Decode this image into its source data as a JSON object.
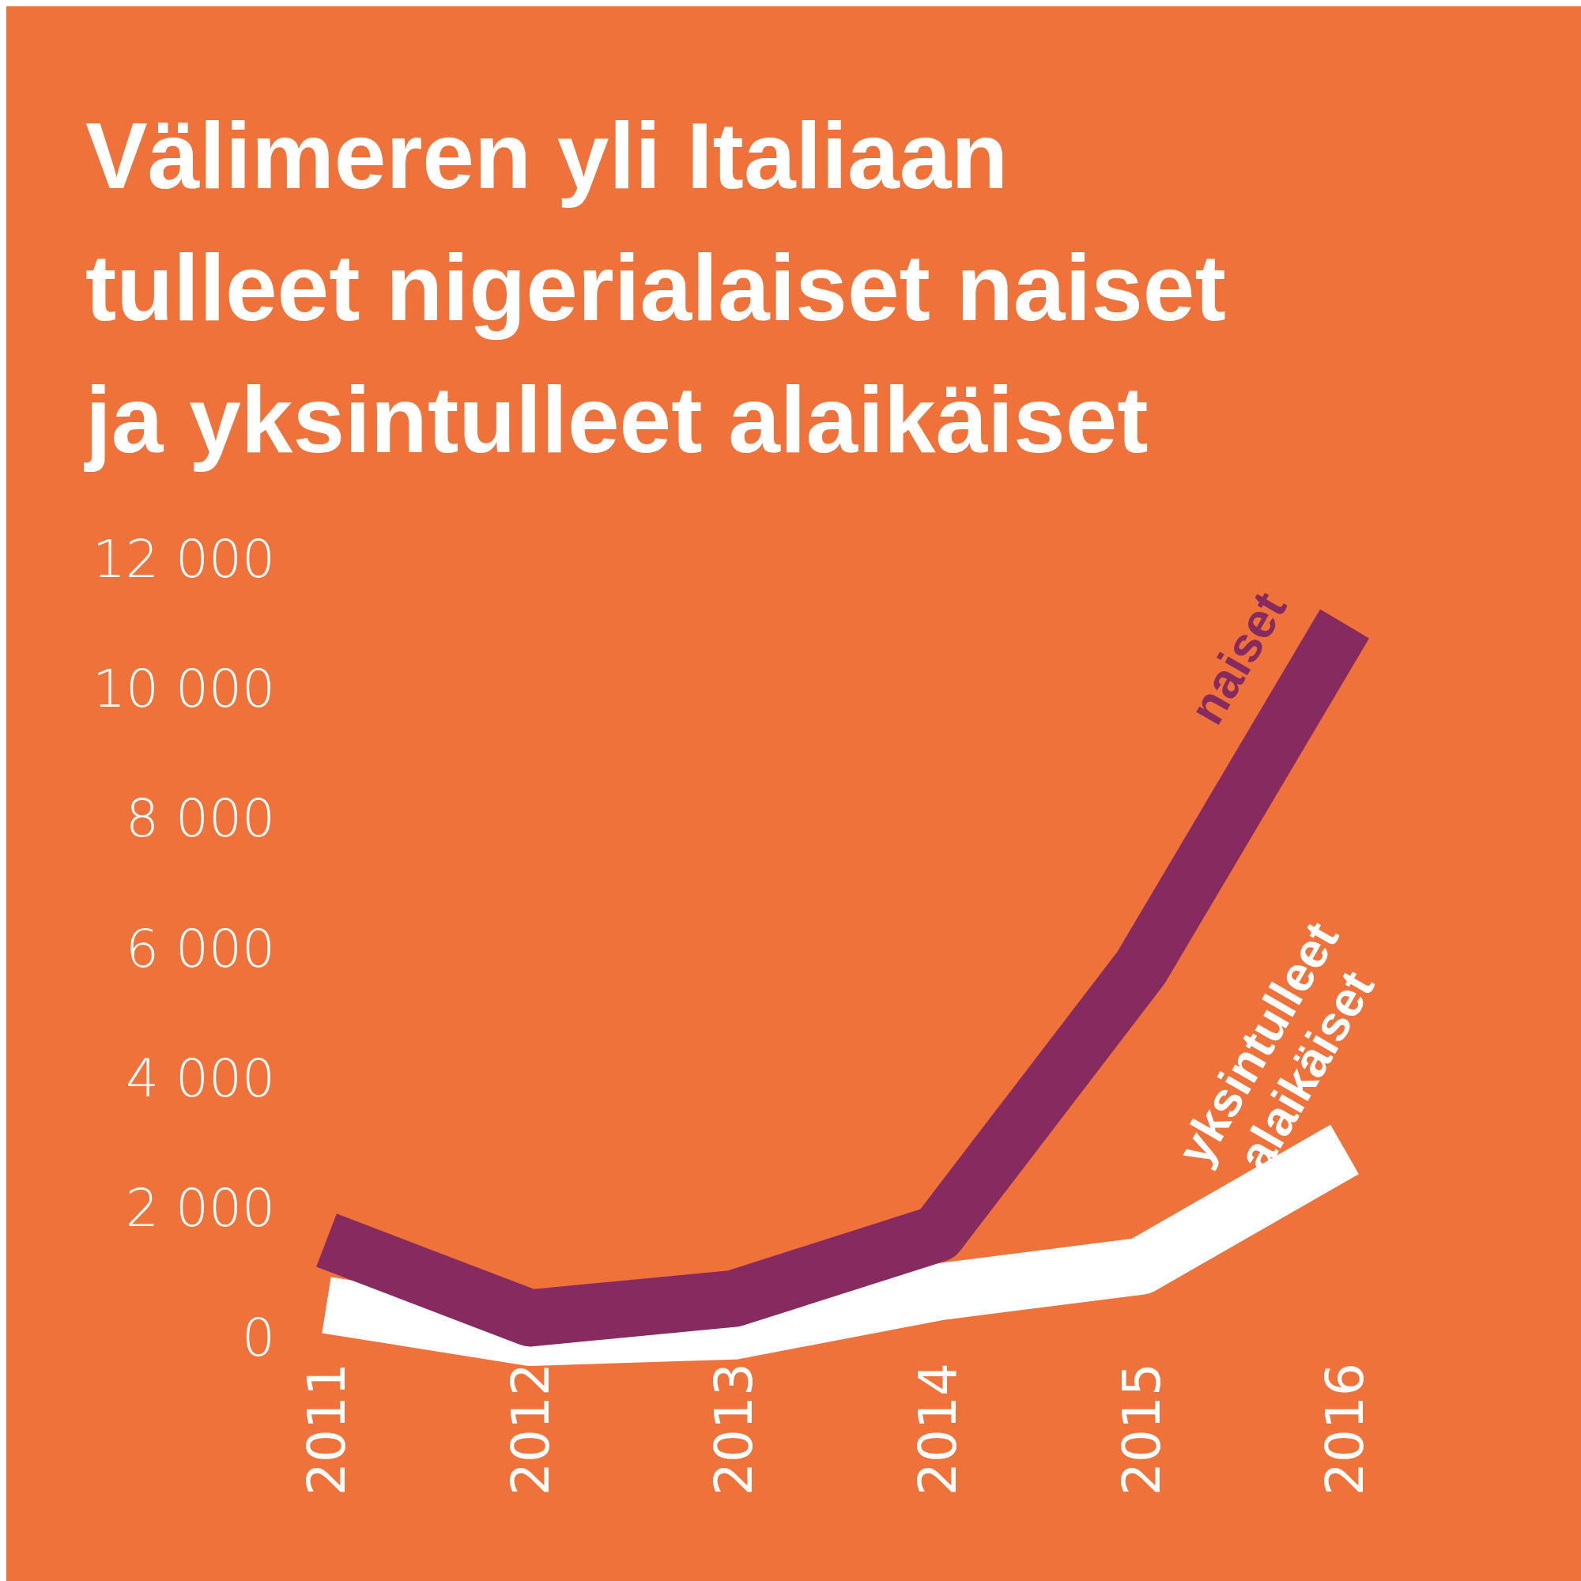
{
  "chart_data": {
    "type": "line",
    "title": "Välimeren yli Italiaan tulleet nigerialaiset naiset ja yksintulleet alaikäiset",
    "categories": [
      "2011",
      "2012",
      "2013",
      "2014",
      "2015",
      "2016"
    ],
    "series": [
      {
        "name": "yksintulleet alaikäiset",
        "color": "#ffffff",
        "values": [
          500,
          0,
          100,
          700,
          1100,
          2900
        ]
      },
      {
        "name": "naiset",
        "color": "#872a60",
        "values": [
          1500,
          300,
          600,
          1600,
          5700,
          11000
        ]
      }
    ],
    "ylim": [
      0,
      12000
    ],
    "yticks": [
      {
        "value": 0,
        "label": "0"
      },
      {
        "value": 2000,
        "label": "2 000"
      },
      {
        "value": 4000,
        "label": "4 000"
      },
      {
        "value": 6000,
        "label": "6 000"
      },
      {
        "value": 8000,
        "label": "8 000"
      },
      {
        "value": 10000,
        "label": "10 000"
      },
      {
        "value": 12000,
        "label": "12 000"
      }
    ],
    "grid": false,
    "legend": false,
    "marker": "none",
    "line_style": "solid"
  }
}
